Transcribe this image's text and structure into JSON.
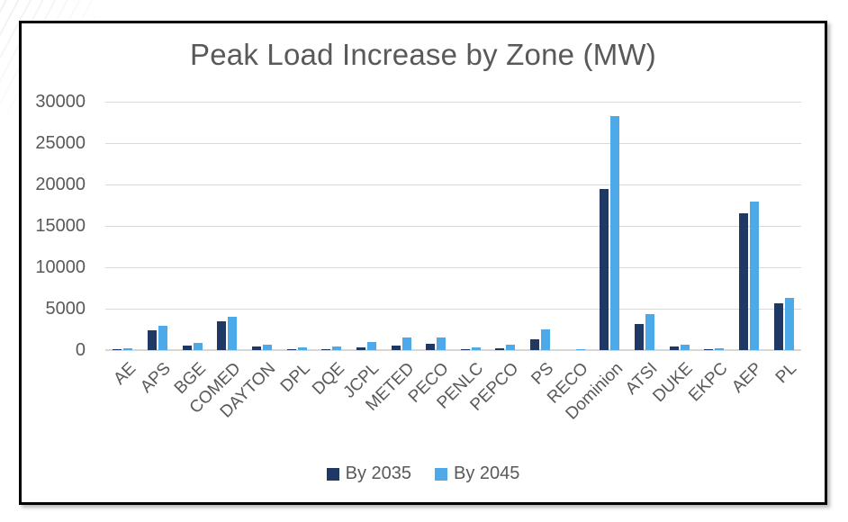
{
  "chart_data": {
    "type": "bar",
    "title": "Peak Load Increase by Zone (MW)",
    "xlabel": "",
    "ylabel": "",
    "ylim": [
      0,
      30000
    ],
    "ytick_step": 5000,
    "yticks": [
      0,
      5000,
      10000,
      15000,
      20000,
      25000,
      30000
    ],
    "grid": "horizontal",
    "legend_position": "bottom",
    "categories": [
      "AE",
      "APS",
      "BGE",
      "COMED",
      "DAYTON",
      "DPL",
      "DQE",
      "JCPL",
      "METED",
      "PECO",
      "PENLC",
      "PEPCO",
      "PS",
      "RECO",
      "Dominion",
      "ATSI",
      "DUKE",
      "EKPC",
      "AEP",
      "PL"
    ],
    "series": [
      {
        "name": "By 2035",
        "color": "#1F3864",
        "values": [
          100,
          2400,
          500,
          3500,
          400,
          100,
          150,
          300,
          500,
          750,
          50,
          250,
          1300,
          0,
          19500,
          3200,
          400,
          100,
          16500,
          5600
        ]
      },
      {
        "name": "By 2045",
        "color": "#4DA9E8",
        "values": [
          250,
          2900,
          900,
          4000,
          600,
          350,
          400,
          1000,
          1500,
          1550,
          300,
          650,
          2500,
          50,
          28300,
          4300,
          700,
          200,
          17900,
          6300
        ]
      }
    ]
  },
  "colors": {
    "title_text": "#595959",
    "axis_text": "#595959",
    "gridline": "#D9D9D9",
    "axis_line": "#D6D6D6",
    "frame_border": "#000000",
    "background": "#FFFFFF"
  }
}
